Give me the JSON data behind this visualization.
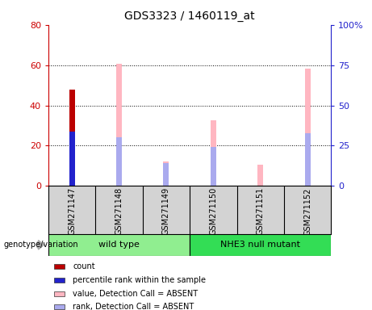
{
  "title": "GDS3323 / 1460119_at",
  "samples": [
    "GSM271147",
    "GSM271148",
    "GSM271149",
    "GSM271150",
    "GSM271151",
    "GSM271152"
  ],
  "count_values": [
    48,
    0,
    0,
    0,
    0,
    0
  ],
  "percentile_values": [
    27,
    0,
    0,
    0,
    0,
    0
  ],
  "value_absent": [
    0,
    76,
    15,
    41,
    13,
    73
  ],
  "rank_absent": [
    0,
    30,
    14,
    24,
    0,
    33
  ],
  "ylim_left": [
    0,
    80
  ],
  "ylim_right": [
    0,
    100
  ],
  "yticks_left": [
    0,
    20,
    40,
    60,
    80
  ],
  "yticks_right": [
    0,
    25,
    50,
    75,
    100
  ],
  "ytick_labels_right": [
    "0",
    "25",
    "50",
    "75",
    "100%"
  ],
  "colors": {
    "count": "#BB0000",
    "percentile": "#2222CC",
    "value_absent": "#FFB6C1",
    "rank_absent": "#AAAAEE",
    "left_axis": "#CC0000",
    "right_axis": "#2222CC"
  },
  "legend_items": [
    {
      "label": "count",
      "color": "#BB0000"
    },
    {
      "label": "percentile rank within the sample",
      "color": "#2222CC"
    },
    {
      "label": "value, Detection Call = ABSENT",
      "color": "#FFB6C1"
    },
    {
      "label": "rank, Detection Call = ABSENT",
      "color": "#AAAAEE"
    }
  ],
  "group_label": "genotype/variation",
  "groups": [
    {
      "label": "wild type",
      "color": "#90EE90",
      "start": 0,
      "end": 3
    },
    {
      "label": "NHE3 null mutant",
      "color": "#33DD55",
      "start": 3,
      "end": 6
    }
  ],
  "bar_width": 0.12
}
